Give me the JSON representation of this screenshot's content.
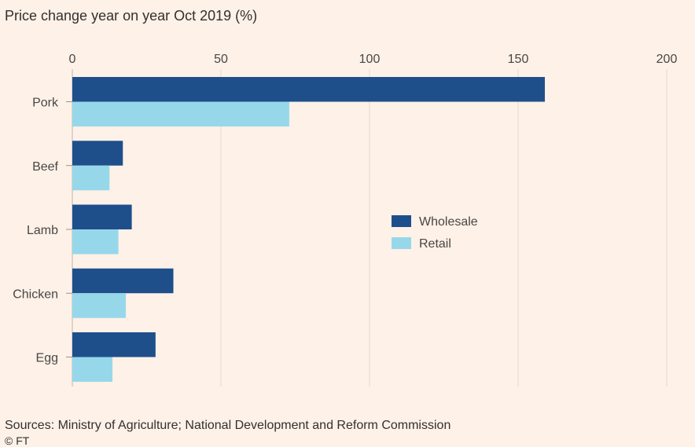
{
  "title": "Price change year on year Oct 2019 (%)",
  "source": "Sources: Ministry of Agriculture; National Development and Reform Commission",
  "copyright": "© FT",
  "colors": {
    "background": "#fdf1e8",
    "wholesale": "#1e4f8b",
    "retail": "#96d8ea",
    "grid": "#e6d9ce",
    "text": "#33302e"
  },
  "chart_data": {
    "type": "bar",
    "orientation": "horizontal",
    "title": "Price change year on year Oct 2019 (%)",
    "xlabel": "",
    "ylabel": "",
    "xlim": [
      0,
      200
    ],
    "ticks": [
      0,
      50,
      100,
      150,
      200
    ],
    "tick_labels": [
      "0",
      "50",
      "100",
      "150",
      "200"
    ],
    "categories": [
      "Pork",
      "Beef",
      "Lamb",
      "Chicken",
      "Egg"
    ],
    "series": [
      {
        "name": "Wholesale",
        "values": [
          159,
          17,
          20,
          34,
          28
        ]
      },
      {
        "name": "Retail",
        "values": [
          73,
          12.5,
          15.5,
          18,
          13.5
        ]
      }
    ],
    "legend": [
      "Wholesale",
      "Retail"
    ],
    "legend_position": "center-right",
    "grid": true
  }
}
